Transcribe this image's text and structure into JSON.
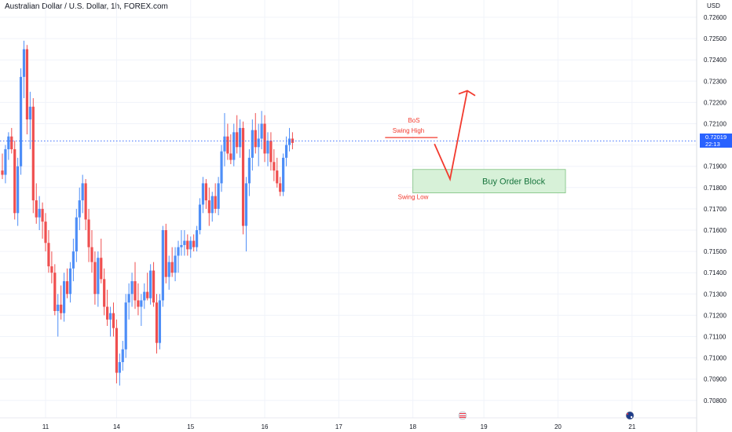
{
  "header": {
    "title": "Australian Dollar / U.S. Dollar, 1h, FOREX.com",
    "currency": "USD"
  },
  "price_tag": {
    "price": "0.72019",
    "countdown": "22:13"
  },
  "colors": {
    "up": "#4e8ef7",
    "down": "#ef4f4f",
    "axis": "#131722",
    "grid": "#f0f3fa",
    "accent_blue": "#2962ff",
    "annotation": "#f23a2e",
    "zone_fill": "#d7f1d8",
    "zone_border": "#7cc17e"
  },
  "chart_data": {
    "type": "candlestick",
    "title": "Australian Dollar / U.S. Dollar, 1h, FOREX.com",
    "ylabel": "USD",
    "ylim": [
      0.70755,
      0.72655
    ],
    "y_ticks": [
      "0.72600",
      "0.72500",
      "0.72400",
      "0.72300",
      "0.72200",
      "0.72100",
      "0.72000",
      "0.71900",
      "0.71800",
      "0.71700",
      "0.71600",
      "0.71500",
      "0.71400",
      "0.71300",
      "0.71200",
      "0.71100",
      "0.71000",
      "0.70900",
      "0.70800"
    ],
    "x_ticks": [
      {
        "label": "11",
        "bar": 14
      },
      {
        "label": "14",
        "bar": 37
      },
      {
        "label": "15",
        "bar": 61
      },
      {
        "label": "16",
        "bar": 85
      },
      {
        "label": "17",
        "bar": 109
      },
      {
        "label": "18",
        "bar": 133
      },
      {
        "label": "19",
        "bar": 156
      },
      {
        "label": "20",
        "bar": 180
      },
      {
        "label": "21",
        "bar": 204
      }
    ],
    "last_price": 0.72019,
    "ohlc": [
      [
        0.7188,
        0.7196,
        0.7184,
        0.7186
      ],
      [
        0.7186,
        0.72,
        0.7182,
        0.7198
      ],
      [
        0.7198,
        0.7206,
        0.7193,
        0.7204
      ],
      [
        0.7204,
        0.7208,
        0.7196,
        0.7198
      ],
      [
        0.7198,
        0.7202,
        0.7165,
        0.7168
      ],
      [
        0.7168,
        0.7194,
        0.7162,
        0.719
      ],
      [
        0.719,
        0.7236,
        0.7186,
        0.7232
      ],
      [
        0.7232,
        0.7249,
        0.7222,
        0.7245
      ],
      [
        0.7245,
        0.7247,
        0.7205,
        0.7212
      ],
      [
        0.7212,
        0.7225,
        0.7198,
        0.7218
      ],
      [
        0.7218,
        0.7222,
        0.7168,
        0.7174
      ],
      [
        0.7174,
        0.7182,
        0.7163,
        0.7166
      ],
      [
        0.7166,
        0.7176,
        0.716,
        0.717
      ],
      [
        0.717,
        0.7173,
        0.7156,
        0.7164
      ],
      [
        0.7164,
        0.7168,
        0.715,
        0.7154
      ],
      [
        0.7154,
        0.716,
        0.714,
        0.7143
      ],
      [
        0.7143,
        0.715,
        0.7135,
        0.714
      ],
      [
        0.714,
        0.7144,
        0.712,
        0.7122
      ],
      [
        0.7122,
        0.713,
        0.711,
        0.7125
      ],
      [
        0.7125,
        0.7134,
        0.7118,
        0.7121
      ],
      [
        0.7121,
        0.714,
        0.7117,
        0.7136
      ],
      [
        0.7136,
        0.7142,
        0.7128,
        0.713
      ],
      [
        0.713,
        0.7145,
        0.7126,
        0.7142
      ],
      [
        0.7142,
        0.7156,
        0.7136,
        0.715
      ],
      [
        0.715,
        0.717,
        0.7145,
        0.7166
      ],
      [
        0.7166,
        0.718,
        0.716,
        0.7174
      ],
      [
        0.7174,
        0.7186,
        0.7168,
        0.7182
      ],
      [
        0.7182,
        0.7184,
        0.716,
        0.7165
      ],
      [
        0.7165,
        0.717,
        0.7145,
        0.7152
      ],
      [
        0.7152,
        0.716,
        0.714,
        0.7145
      ],
      [
        0.7145,
        0.715,
        0.7125,
        0.713
      ],
      [
        0.713,
        0.715,
        0.7124,
        0.7147
      ],
      [
        0.7147,
        0.7156,
        0.7135,
        0.7137
      ],
      [
        0.7137,
        0.7142,
        0.712,
        0.7124
      ],
      [
        0.7124,
        0.7132,
        0.7115,
        0.7118
      ],
      [
        0.7118,
        0.7124,
        0.711,
        0.7121
      ],
      [
        0.7121,
        0.7126,
        0.711,
        0.7114
      ],
      [
        0.7114,
        0.7118,
        0.7088,
        0.7093
      ],
      [
        0.7093,
        0.7102,
        0.7087,
        0.7098
      ],
      [
        0.7098,
        0.7108,
        0.7094,
        0.7104
      ],
      [
        0.7104,
        0.713,
        0.71,
        0.7126
      ],
      [
        0.7126,
        0.7135,
        0.7118,
        0.713
      ],
      [
        0.713,
        0.714,
        0.7124,
        0.7136
      ],
      [
        0.7136,
        0.7145,
        0.7123,
        0.7127
      ],
      [
        0.7127,
        0.7135,
        0.712,
        0.7124
      ],
      [
        0.7124,
        0.713,
        0.7115,
        0.7127
      ],
      [
        0.7127,
        0.7135,
        0.7123,
        0.7131
      ],
      [
        0.7131,
        0.714,
        0.7127,
        0.7128
      ],
      [
        0.7128,
        0.7144,
        0.7125,
        0.7141
      ],
      [
        0.7141,
        0.7145,
        0.7124,
        0.7126
      ],
      [
        0.7126,
        0.713,
        0.7102,
        0.7107
      ],
      [
        0.7107,
        0.713,
        0.7104,
        0.7127
      ],
      [
        0.7127,
        0.7162,
        0.7124,
        0.716
      ],
      [
        0.716,
        0.7163,
        0.7135,
        0.7138
      ],
      [
        0.7138,
        0.7148,
        0.7132,
        0.7145
      ],
      [
        0.7145,
        0.7152,
        0.7138,
        0.714
      ],
      [
        0.714,
        0.7152,
        0.7136,
        0.7148
      ],
      [
        0.7148,
        0.7155,
        0.714,
        0.7152
      ],
      [
        0.7152,
        0.716,
        0.7148,
        0.7153
      ],
      [
        0.7153,
        0.716,
        0.7148,
        0.7155
      ],
      [
        0.7155,
        0.7158,
        0.7148,
        0.7151
      ],
      [
        0.7151,
        0.7157,
        0.7147,
        0.7155
      ],
      [
        0.7155,
        0.7158,
        0.715,
        0.7152
      ],
      [
        0.7152,
        0.7162,
        0.715,
        0.716
      ],
      [
        0.716,
        0.7175,
        0.7158,
        0.7172
      ],
      [
        0.7172,
        0.7185,
        0.7168,
        0.7182
      ],
      [
        0.7182,
        0.7184,
        0.717,
        0.7174
      ],
      [
        0.7174,
        0.718,
        0.7162,
        0.7168
      ],
      [
        0.7168,
        0.7178,
        0.7164,
        0.7176
      ],
      [
        0.7176,
        0.7182,
        0.7168,
        0.717
      ],
      [
        0.717,
        0.7185,
        0.7167,
        0.7182
      ],
      [
        0.7182,
        0.72,
        0.7178,
        0.7197
      ],
      [
        0.7197,
        0.7215,
        0.719,
        0.7204
      ],
      [
        0.7204,
        0.721,
        0.7193,
        0.7196
      ],
      [
        0.7196,
        0.7205,
        0.7191,
        0.7193
      ],
      [
        0.7193,
        0.721,
        0.719,
        0.7206
      ],
      [
        0.7206,
        0.7214,
        0.7196,
        0.7199
      ],
      [
        0.7199,
        0.7212,
        0.7194,
        0.7208
      ],
      [
        0.7208,
        0.7211,
        0.7158,
        0.7162
      ],
      [
        0.7162,
        0.7185,
        0.715,
        0.7182
      ],
      [
        0.7182,
        0.7198,
        0.7176,
        0.7194
      ],
      [
        0.7194,
        0.7212,
        0.7188,
        0.7207
      ],
      [
        0.7207,
        0.7215,
        0.7196,
        0.7199
      ],
      [
        0.7199,
        0.721,
        0.719,
        0.7203
      ],
      [
        0.7203,
        0.7216,
        0.7198,
        0.721
      ],
      [
        0.721,
        0.7214,
        0.7192,
        0.7196
      ],
      [
        0.7196,
        0.7206,
        0.719,
        0.7202
      ],
      [
        0.7202,
        0.7206,
        0.7188,
        0.7192
      ],
      [
        0.7192,
        0.7198,
        0.7183,
        0.7188
      ],
      [
        0.7188,
        0.7194,
        0.718,
        0.7182
      ],
      [
        0.7182,
        0.7185,
        0.7176,
        0.7178
      ],
      [
        0.7178,
        0.7196,
        0.7176,
        0.7194
      ],
      [
        0.7194,
        0.7204,
        0.719,
        0.72
      ],
      [
        0.72,
        0.7208,
        0.7197,
        0.7203
      ],
      [
        0.7203,
        0.7206,
        0.7198,
        0.7201
      ]
    ]
  },
  "annotations": {
    "bos": "BoS",
    "swing_high": "Swing High",
    "swing_low": "Swing Low",
    "order_block": "Buy Order Block"
  }
}
